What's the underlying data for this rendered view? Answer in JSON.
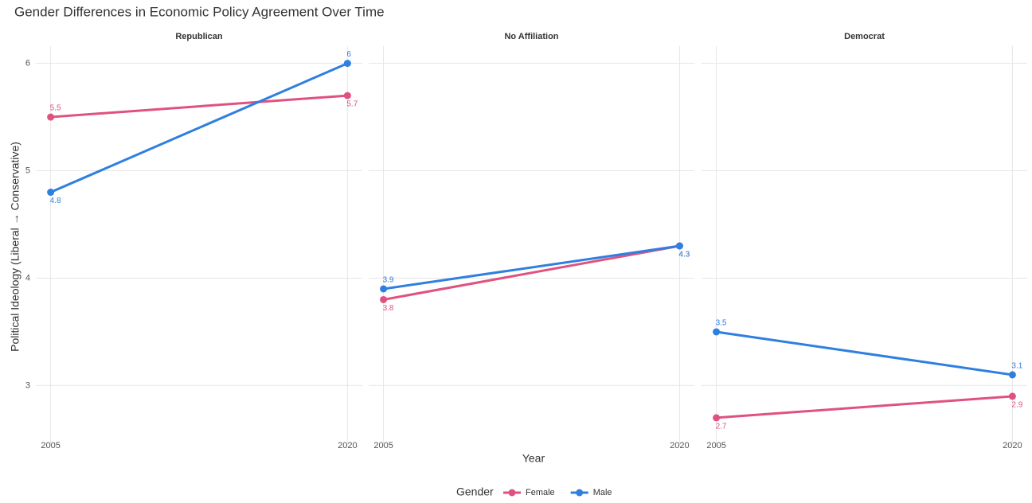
{
  "chart_data": {
    "type": "line",
    "title": "Gender Differences in Economic Policy Agreement Over Time",
    "xlabel": "Year",
    "ylabel": "Political Ideology (Liberal → Conservative)",
    "legend_title": "Gender",
    "x": [
      2005,
      2020
    ],
    "xlim": [
      2004.25,
      2020.75
    ],
    "xticks": [
      2005,
      2020
    ],
    "ylim": [
      2.44,
      6.16
    ],
    "yticks": [
      3,
      4,
      5,
      6
    ],
    "grid": true,
    "legend": "bottom",
    "facets": [
      {
        "title": "Republican",
        "series": [
          {
            "name": "Female",
            "color": "#e0527e",
            "values": [
              5.5,
              5.7
            ]
          },
          {
            "name": "Male",
            "color": "#2f7fe0",
            "values": [
              4.8,
              6
            ]
          }
        ]
      },
      {
        "title": "No Affiliation",
        "series": [
          {
            "name": "Female",
            "color": "#e0527e",
            "values": [
              3.8,
              4.3
            ]
          },
          {
            "name": "Male",
            "color": "#2f7fe0",
            "values": [
              3.9,
              4.3
            ]
          }
        ]
      },
      {
        "title": "Democrat",
        "series": [
          {
            "name": "Female",
            "color": "#e0527e",
            "values": [
              2.7,
              2.9
            ]
          },
          {
            "name": "Male",
            "color": "#2f7fe0",
            "values": [
              3.5,
              3.1
            ]
          }
        ]
      }
    ]
  }
}
